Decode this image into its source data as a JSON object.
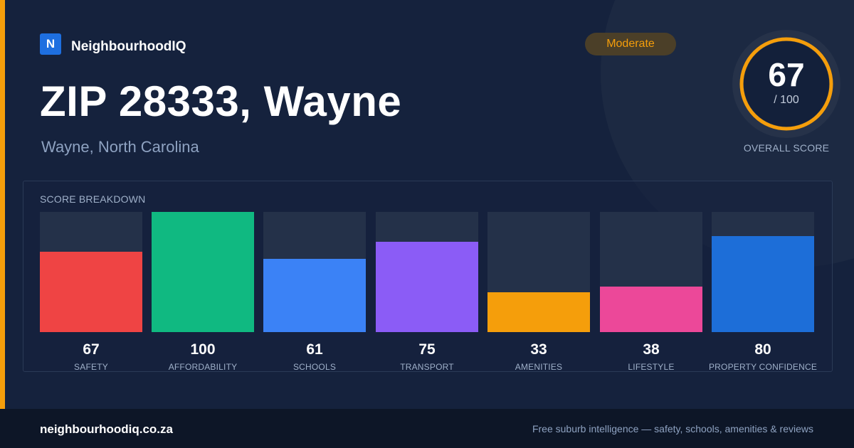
{
  "brand": {
    "logo_letter": "N",
    "name": "NeighbourhoodIQ"
  },
  "header": {
    "title": "ZIP 28333, Wayne",
    "subtitle": "Wayne, North Carolina"
  },
  "rating_badge": {
    "label": "Moderate",
    "color": "#f59e0b"
  },
  "overall_score": {
    "value": "67",
    "max_label": "/ 100",
    "label": "OVERALL SCORE",
    "ring_color": "#f59e0b",
    "fraction": 0.67
  },
  "breakdown": {
    "title": "SCORE BREAKDOWN",
    "items": [
      {
        "value": "67",
        "score": 67,
        "label": "SAFETY",
        "color": "#ef4444"
      },
      {
        "value": "100",
        "score": 100,
        "label": "AFFORDABILITY",
        "color": "#10b981"
      },
      {
        "value": "61",
        "score": 61,
        "label": "SCHOOLS",
        "color": "#3b82f6"
      },
      {
        "value": "75",
        "score": 75,
        "label": "TRANSPORT",
        "color": "#8b5cf6"
      },
      {
        "value": "33",
        "score": 33,
        "label": "AMENITIES",
        "color": "#f59e0b"
      },
      {
        "value": "38",
        "score": 38,
        "label": "LIFESTYLE",
        "color": "#ec4899"
      },
      {
        "value": "80",
        "score": 80,
        "label": "PROPERTY CONFIDENCE",
        "color": "#1d6ed8"
      }
    ]
  },
  "footer": {
    "site": "neighbourhoodiq.co.za",
    "tagline": "Free suburb intelligence — safety, schools, amenities & reviews"
  }
}
